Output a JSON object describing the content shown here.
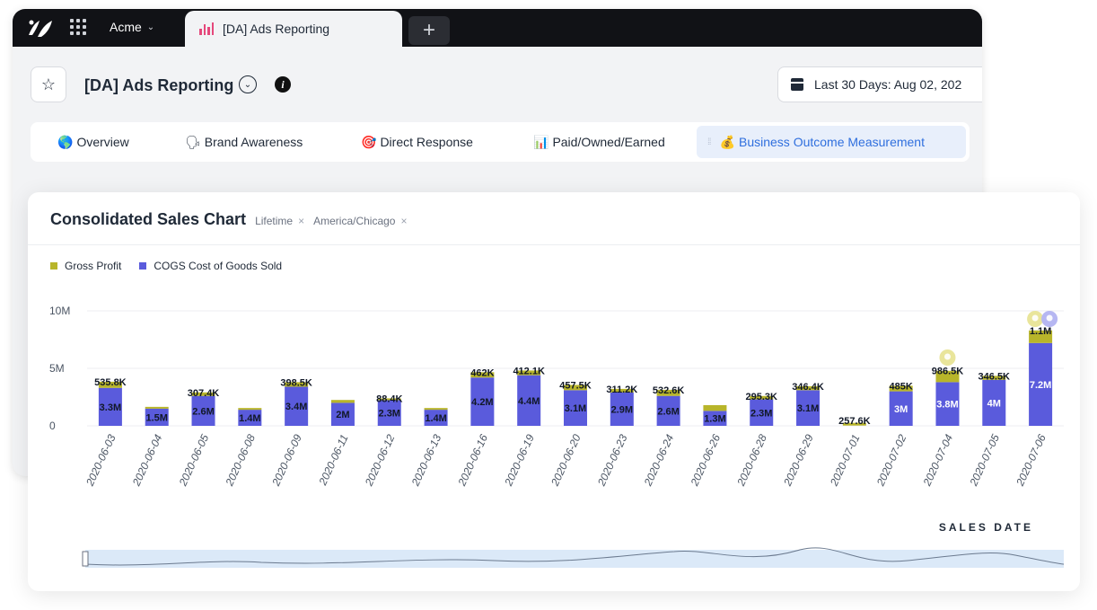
{
  "app": {
    "workspace": "Acme",
    "tab_title": "[DA] Ads Reporting",
    "new_tab_label": "+"
  },
  "header": {
    "report_title": "[DA] Ads Reporting",
    "date_range": "Last 30 Days: Aug 02, 202"
  },
  "nav_tabs": [
    {
      "emoji": "🌎",
      "label": "Overview",
      "active": false
    },
    {
      "emoji": "🗣",
      "label": "Brand Awareness",
      "active": false
    },
    {
      "emoji": "🎯",
      "label": "Direct Response",
      "active": false
    },
    {
      "emoji": "📊",
      "label": "Paid/Owned/Earned",
      "active": false
    },
    {
      "emoji": "💰",
      "label": "Business Outcome Measurement",
      "active": true
    }
  ],
  "card": {
    "title": "Consolidated Sales Chart",
    "chip_1": "Lifetime",
    "chip_2": "America/Chicago",
    "chip_close": "×"
  },
  "colors": {
    "gross_profit": "#b8b52a",
    "cogs": "#5a5bdc",
    "brand": "#2f6fde"
  },
  "chart_data": {
    "type": "bar",
    "stacked": true,
    "xlabel": "SALES DATE",
    "ylabel": "",
    "ylim": [
      0,
      10000000
    ],
    "yticks": [
      {
        "value": 0,
        "label": "0"
      },
      {
        "value": 5000000,
        "label": "5M"
      },
      {
        "value": 10000000,
        "label": "10M"
      }
    ],
    "legend_position": "top-left",
    "categories": [
      "2020-06-03",
      "2020-06-04",
      "2020-06-05",
      "2020-06-08",
      "2020-06-09",
      "2020-06-11",
      "2020-06-12",
      "2020-06-13",
      "2020-06-16",
      "2020-06-19",
      "2020-06-20",
      "2020-06-23",
      "2020-06-24",
      "2020-06-26",
      "2020-06-28",
      "2020-06-29",
      "2020-07-01",
      "2020-07-02",
      "2020-07-04",
      "2020-07-05",
      "2020-07-06"
    ],
    "series": [
      {
        "name": "COGS Cost of Goods Sold",
        "values": [
          3300000,
          1500000,
          2600000,
          1400000,
          3400000,
          2000000,
          2300000,
          1400000,
          4200000,
          4400000,
          3100000,
          2900000,
          2600000,
          1300000,
          2300000,
          3100000,
          0,
          3000000,
          3800000,
          4000000,
          7200000
        ],
        "labels": [
          "3.3M",
          "1.5M",
          "2.6M",
          "1.4M",
          "3.4M",
          "2M",
          "2.3M",
          "1.4M",
          "4.2M",
          "4.4M",
          "3.1M",
          "2.9M",
          "2.6M",
          "1.3M",
          "2.3M",
          "3.1M",
          "",
          "3M",
          "3.8M",
          "4M",
          "7.2M"
        ]
      },
      {
        "name": "Gross Profit",
        "values": [
          535800,
          150000,
          307400,
          150000,
          398500,
          250000,
          88400,
          150000,
          462000,
          412100,
          457500,
          311200,
          532600,
          500000,
          295300,
          346400,
          257600,
          485000,
          986500,
          346500,
          1100000
        ],
        "labels": [
          "535.8K",
          "",
          "307.4K",
          "",
          "398.5K",
          "",
          "88.4K",
          "",
          "462K",
          "412.1K",
          "457.5K",
          "311.2K",
          "532.6K",
          "",
          "295.3K",
          "346.4K",
          "257.6K",
          "485K",
          "986.5K",
          "346.5K",
          "1.1M"
        ]
      }
    ]
  }
}
